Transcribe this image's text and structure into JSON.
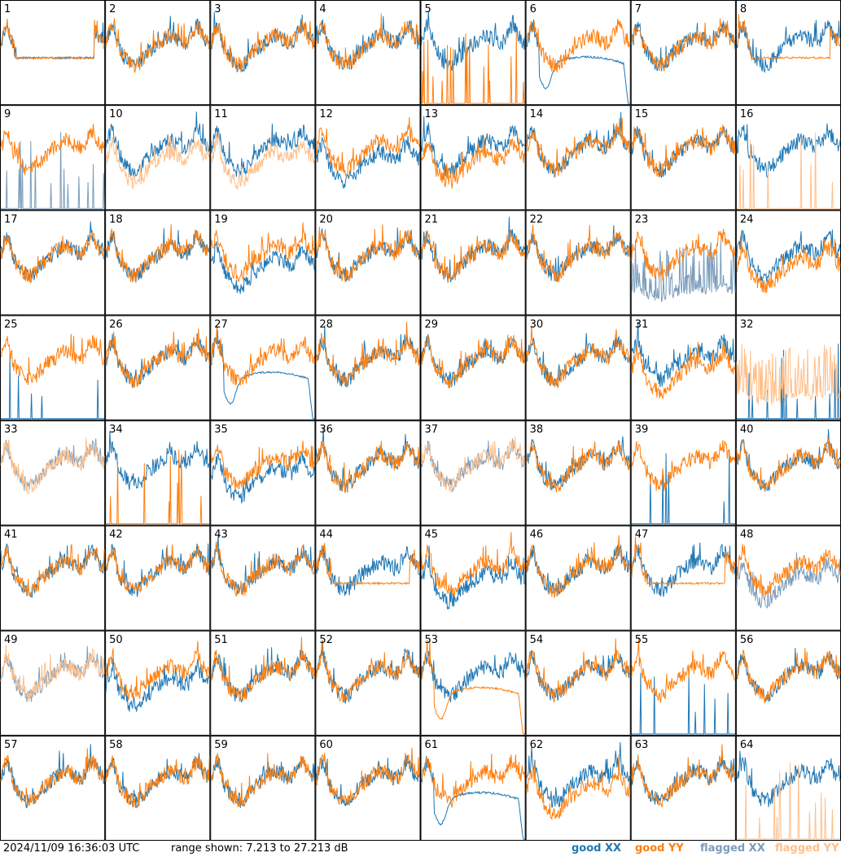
{
  "footer": {
    "timestamp": "2024/11/09 16:36:03 UTC",
    "range_text": "range shown: 7.213 to 27.213 dB"
  },
  "legend": [
    {
      "label": "good XX",
      "color": "#1f77b4"
    },
    {
      "label": "good YY",
      "color": "#ff7f0e"
    },
    {
      "label": "flagged XX",
      "color": "#7a9cbc"
    },
    {
      "label": "flagged YY",
      "color": "#ffbf8a"
    }
  ],
  "chart_data": {
    "type": "line",
    "grid_rows": 8,
    "grid_cols": 8,
    "ylim_db": [
      7.213,
      27.213
    ],
    "panels": [
      {
        "label": "1",
        "xx": "good",
        "yy": "good",
        "xx_shape": "plateau",
        "yy_shape": "plateau"
      },
      {
        "label": "2",
        "xx": "good",
        "yy": "good",
        "xx_shape": "normal",
        "yy_shape": "normal"
      },
      {
        "label": "3",
        "xx": "good",
        "yy": "good",
        "xx_shape": "normal",
        "yy_shape": "normal"
      },
      {
        "label": "4",
        "xx": "good",
        "yy": "good",
        "xx_shape": "normal",
        "yy_shape": "normal"
      },
      {
        "label": "5",
        "xx": "good",
        "yy": "good",
        "xx_shape": "normal",
        "yy_shape": "spiky"
      },
      {
        "label": "6",
        "xx": "good",
        "yy": "good",
        "xx_shape": "bandpass",
        "yy_shape": "normal"
      },
      {
        "label": "7",
        "xx": "good",
        "yy": "good",
        "xx_shape": "normal",
        "yy_shape": "normal"
      },
      {
        "label": "8",
        "xx": "good",
        "yy": "good",
        "xx_shape": "normal",
        "yy_shape": "plateau"
      },
      {
        "label": "9",
        "xx": "flagged",
        "yy": "good",
        "xx_shape": "spiky",
        "yy_shape": "normal"
      },
      {
        "label": "10",
        "xx": "good",
        "yy": "flagged",
        "xx_shape": "normal",
        "yy_shape": "low"
      },
      {
        "label": "11",
        "xx": "good",
        "yy": "flagged",
        "xx_shape": "normal",
        "yy_shape": "low"
      },
      {
        "label": "12",
        "xx": "good",
        "yy": "good",
        "xx_shape": "low",
        "yy_shape": "normal"
      },
      {
        "label": "13",
        "xx": "good",
        "yy": "good",
        "xx_shape": "normal",
        "yy_shape": "low"
      },
      {
        "label": "14",
        "xx": "good",
        "yy": "good",
        "xx_shape": "normal",
        "yy_shape": "normal"
      },
      {
        "label": "15",
        "xx": "good",
        "yy": "good",
        "xx_shape": "normal",
        "yy_shape": "normal"
      },
      {
        "label": "16",
        "xx": "good",
        "yy": "flagged",
        "xx_shape": "normal",
        "yy_shape": "spiky"
      },
      {
        "label": "17",
        "xx": "good",
        "yy": "good",
        "xx_shape": "normal",
        "yy_shape": "normal"
      },
      {
        "label": "18",
        "xx": "good",
        "yy": "good",
        "xx_shape": "normal",
        "yy_shape": "normal"
      },
      {
        "label": "19",
        "xx": "good",
        "yy": "good",
        "xx_shape": "low",
        "yy_shape": "normal"
      },
      {
        "label": "20",
        "xx": "good",
        "yy": "good",
        "xx_shape": "normal",
        "yy_shape": "normal"
      },
      {
        "label": "21",
        "xx": "good",
        "yy": "good",
        "xx_shape": "normal",
        "yy_shape": "normal"
      },
      {
        "label": "22",
        "xx": "good",
        "yy": "good",
        "xx_shape": "normal",
        "yy_shape": "normal"
      },
      {
        "label": "23",
        "xx": "flagged",
        "yy": "good",
        "xx_shape": "noisy",
        "yy_shape": "normal"
      },
      {
        "label": "24",
        "xx": "good",
        "yy": "good",
        "xx_shape": "normal",
        "yy_shape": "low"
      },
      {
        "label": "25",
        "xx": "good",
        "yy": "good",
        "xx_shape": "spiky",
        "yy_shape": "normal"
      },
      {
        "label": "26",
        "xx": "good",
        "yy": "good",
        "xx_shape": "normal",
        "yy_shape": "normal"
      },
      {
        "label": "27",
        "xx": "good",
        "yy": "good",
        "xx_shape": "bandpass",
        "yy_shape": "normal"
      },
      {
        "label": "28",
        "xx": "good",
        "yy": "good",
        "xx_shape": "normal",
        "yy_shape": "normal"
      },
      {
        "label": "29",
        "xx": "good",
        "yy": "good",
        "xx_shape": "normal",
        "yy_shape": "normal"
      },
      {
        "label": "30",
        "xx": "good",
        "yy": "good",
        "xx_shape": "normal",
        "yy_shape": "normal"
      },
      {
        "label": "31",
        "xx": "good",
        "yy": "good",
        "xx_shape": "normal",
        "yy_shape": "low"
      },
      {
        "label": "32",
        "xx": "good",
        "yy": "flagged",
        "xx_shape": "spiky",
        "yy_shape": "noisy"
      },
      {
        "label": "33",
        "xx": "flagged",
        "yy": "flagged",
        "xx_shape": "normal",
        "yy_shape": "normal"
      },
      {
        "label": "34",
        "xx": "good",
        "yy": "good",
        "xx_shape": "normal",
        "yy_shape": "spiky"
      },
      {
        "label": "35",
        "xx": "good",
        "yy": "good",
        "xx_shape": "low",
        "yy_shape": "normal"
      },
      {
        "label": "36",
        "xx": "good",
        "yy": "good",
        "xx_shape": "normal",
        "yy_shape": "normal"
      },
      {
        "label": "37",
        "xx": "flagged",
        "yy": "flagged",
        "xx_shape": "normal",
        "yy_shape": "normal"
      },
      {
        "label": "38",
        "xx": "good",
        "yy": "good",
        "xx_shape": "normal",
        "yy_shape": "normal"
      },
      {
        "label": "39",
        "xx": "good",
        "yy": "good",
        "xx_shape": "spiky",
        "yy_shape": "normal"
      },
      {
        "label": "40",
        "xx": "good",
        "yy": "good",
        "xx_shape": "normal",
        "yy_shape": "normal"
      },
      {
        "label": "41",
        "xx": "good",
        "yy": "good",
        "xx_shape": "normal",
        "yy_shape": "normal"
      },
      {
        "label": "42",
        "xx": "good",
        "yy": "good",
        "xx_shape": "normal",
        "yy_shape": "normal"
      },
      {
        "label": "43",
        "xx": "good",
        "yy": "good",
        "xx_shape": "normal",
        "yy_shape": "normal"
      },
      {
        "label": "44",
        "xx": "good",
        "yy": "good",
        "xx_shape": "normal",
        "yy_shape": "plateau"
      },
      {
        "label": "45",
        "xx": "good",
        "yy": "good",
        "xx_shape": "low",
        "yy_shape": "normal"
      },
      {
        "label": "46",
        "xx": "good",
        "yy": "good",
        "xx_shape": "normal",
        "yy_shape": "normal"
      },
      {
        "label": "47",
        "xx": "good",
        "yy": "good",
        "xx_shape": "normal",
        "yy_shape": "plateau"
      },
      {
        "label": "48",
        "xx": "flagged",
        "yy": "good",
        "xx_shape": "low",
        "yy_shape": "normal"
      },
      {
        "label": "49",
        "xx": "flagged",
        "yy": "flagged",
        "xx_shape": "normal",
        "yy_shape": "normal"
      },
      {
        "label": "50",
        "xx": "good",
        "yy": "good",
        "xx_shape": "low",
        "yy_shape": "normal"
      },
      {
        "label": "51",
        "xx": "good",
        "yy": "good",
        "xx_shape": "normal",
        "yy_shape": "normal"
      },
      {
        "label": "52",
        "xx": "good",
        "yy": "good",
        "xx_shape": "normal",
        "yy_shape": "normal"
      },
      {
        "label": "53",
        "xx": "good",
        "yy": "good",
        "xx_shape": "normal",
        "yy_shape": "bandpass"
      },
      {
        "label": "54",
        "xx": "good",
        "yy": "good",
        "xx_shape": "normal",
        "yy_shape": "normal"
      },
      {
        "label": "55",
        "xx": "good",
        "yy": "good",
        "xx_shape": "spiky",
        "yy_shape": "normal"
      },
      {
        "label": "56",
        "xx": "good",
        "yy": "good",
        "xx_shape": "normal",
        "yy_shape": "normal"
      },
      {
        "label": "57",
        "xx": "good",
        "yy": "good",
        "xx_shape": "normal",
        "yy_shape": "normal"
      },
      {
        "label": "58",
        "xx": "good",
        "yy": "good",
        "xx_shape": "normal",
        "yy_shape": "normal"
      },
      {
        "label": "59",
        "xx": "good",
        "yy": "good",
        "xx_shape": "normal",
        "yy_shape": "normal"
      },
      {
        "label": "60",
        "xx": "good",
        "yy": "good",
        "xx_shape": "normal",
        "yy_shape": "normal"
      },
      {
        "label": "61",
        "xx": "good",
        "yy": "good",
        "xx_shape": "bandpass",
        "yy_shape": "normal"
      },
      {
        "label": "62",
        "xx": "good",
        "yy": "good",
        "xx_shape": "normal",
        "yy_shape": "low"
      },
      {
        "label": "63",
        "xx": "good",
        "yy": "good",
        "xx_shape": "normal",
        "yy_shape": "normal"
      },
      {
        "label": "64",
        "xx": "good",
        "yy": "flagged",
        "xx_shape": "normal",
        "yy_shape": "spiky"
      }
    ]
  }
}
